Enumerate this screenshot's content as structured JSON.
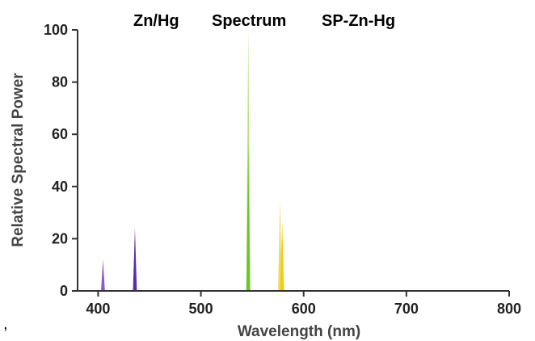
{
  "chart_data": {
    "type": "line",
    "title_parts": [
      "Zn/Hg",
      "Spectrum",
      "SP-Zn-Hg"
    ],
    "xlabel": "Wavelength (nm)",
    "ylabel": "Relative Spectral Power",
    "xlim": [
      380,
      800
    ],
    "ylim": [
      0,
      100
    ],
    "x_ticks": [
      400,
      500,
      600,
      700,
      800
    ],
    "y_ticks": [
      0,
      20,
      40,
      60,
      80,
      100
    ],
    "grid": false,
    "peaks": [
      {
        "x": 404.7,
        "y": 12,
        "color": "#8a5cc8"
      },
      {
        "x": 435.8,
        "y": 24,
        "color": "#5a2ea8"
      },
      {
        "x": 546.1,
        "y": 100,
        "color": "#b6e07a"
      },
      {
        "x": 546.1,
        "y": 56,
        "color": "#6cc62a"
      },
      {
        "x": 577.0,
        "y": 35,
        "color": "#e8dc6a"
      },
      {
        "x": 579.1,
        "y": 27,
        "color": "#f2cc10"
      }
    ]
  },
  "extra_text": ","
}
